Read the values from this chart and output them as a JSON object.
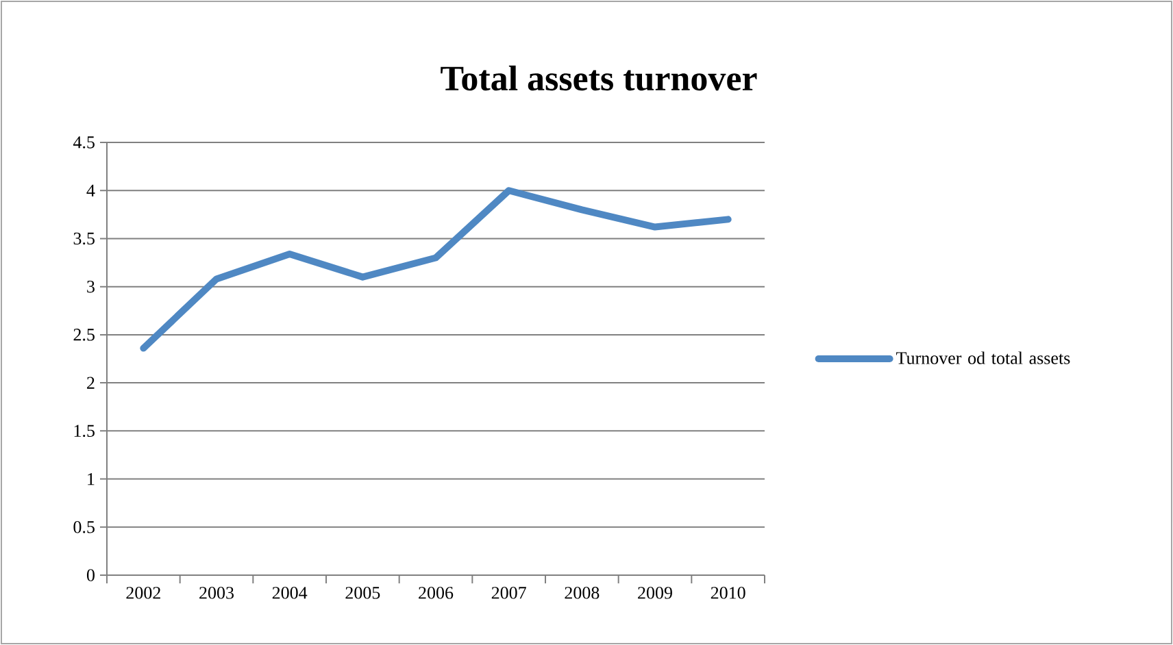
{
  "chart_data": {
    "type": "line",
    "title": "Total assets turnover",
    "categories": [
      "2002",
      "2003",
      "2004",
      "2005",
      "2006",
      "2007",
      "2008",
      "2009",
      "2010"
    ],
    "series": [
      {
        "name": "Turnover od total assets",
        "color": "#4f88c3",
        "values": [
          2.36,
          3.08,
          3.34,
          3.1,
          3.3,
          4.0,
          3.8,
          3.62,
          3.7
        ]
      }
    ],
    "ylim": [
      0,
      4.5
    ],
    "yticks": [
      0,
      0.5,
      1,
      1.5,
      2,
      2.5,
      3,
      3.5,
      4,
      4.5
    ],
    "grid": "y",
    "legend": "right",
    "marker": "none",
    "line_style": "solid"
  }
}
